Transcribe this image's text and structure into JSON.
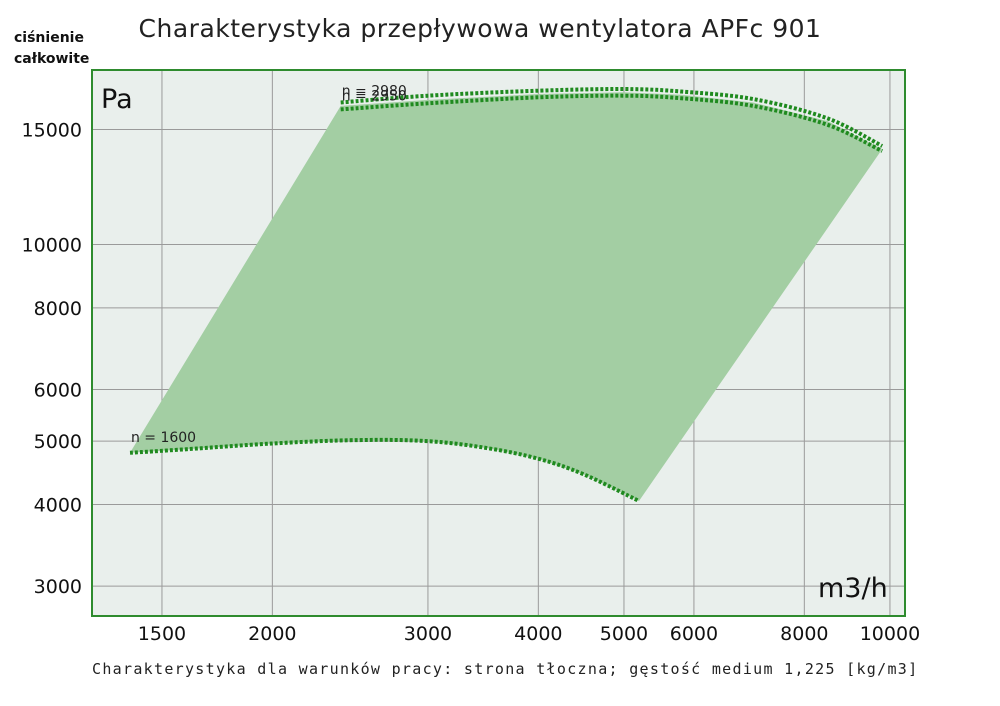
{
  "title": "Charakterystyka przepływowa wentylatora APFc 901",
  "y_axis_label_line1": "ciśnienie",
  "y_axis_label_line2": "całkowite",
  "y_unit": "Pa",
  "x_unit": "m3/h",
  "caption": "Charakterystyka dla warunków pracy: strona tłoczna; gęstość medium 1,225 [kg/m3]",
  "colors": {
    "area": "#a3cea3",
    "curve": "#1f8a1f",
    "plot_bg": "#e9efec",
    "frame": "#2e8b2e",
    "grid": "#9a9a9a"
  },
  "chart_data": {
    "type": "line",
    "title": "Charakterystyka przepływowa wentylatora APFc 901",
    "xlabel": "m3/h",
    "ylabel": "ciśnienie całkowite Pa",
    "x_scale": "log",
    "y_scale": "log",
    "xlim": [
      1250,
      10400
    ],
    "ylim": [
      2700,
      18500
    ],
    "x_ticks": [
      1500,
      2000,
      3000,
      4000,
      5000,
      6000,
      8000,
      10000
    ],
    "y_ticks": [
      3000,
      4000,
      5000,
      6000,
      8000,
      10000,
      15000
    ],
    "grid": true,
    "series": [
      {
        "name": "n = 2980",
        "x": [
          2390,
          3000,
          4000,
          5000,
          5800,
          7000,
          8500,
          9800
        ],
        "y": [
          16500,
          16900,
          17200,
          17300,
          17150,
          16700,
          15600,
          14150
        ]
      },
      {
        "name": "n = 2950",
        "x": [
          2390,
          3000,
          4000,
          5000,
          5800,
          7000,
          8500,
          9800
        ],
        "y": [
          16100,
          16450,
          16800,
          16900,
          16750,
          16300,
          15250,
          13900
        ]
      },
      {
        "name": "n = 1600",
        "x": [
          1380,
          1600,
          2000,
          2500,
          3000,
          3500,
          4000,
          4500,
          5200
        ],
        "y": [
          4800,
          4860,
          4960,
          5020,
          5000,
          4880,
          4700,
          4450,
          4050
        ]
      }
    ],
    "operating_area": {
      "x": [
        1380,
        2390,
        3000,
        4000,
        5000,
        5800,
        7000,
        8500,
        9800,
        5200,
        4500,
        4000,
        3500,
        3000,
        2500,
        2000,
        1600
      ],
      "y": [
        4800,
        16300,
        16650,
        17000,
        17100,
        16950,
        16500,
        15450,
        14000,
        4050,
        4450,
        4700,
        4880,
        5000,
        5020,
        4960,
        4860
      ]
    }
  }
}
